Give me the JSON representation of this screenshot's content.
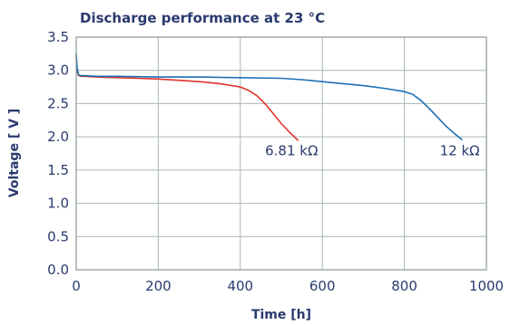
{
  "chart_data": {
    "type": "line",
    "title": "Discharge performance at 23 °C",
    "xlabel": "Time [h]",
    "ylabel": "Voltage [ V ]",
    "xlim": [
      0,
      1000
    ],
    "ylim": [
      0.0,
      3.5
    ],
    "xticks": [
      0,
      200,
      400,
      600,
      800,
      1000
    ],
    "yticks": [
      0.0,
      0.5,
      1.0,
      1.5,
      2.0,
      2.5,
      3.0,
      3.5
    ],
    "ytick_labels": [
      "0.0",
      "0.5",
      "1.0",
      "1.5",
      "2.0",
      "2.5",
      "3.0",
      "3.5"
    ],
    "grid": true,
    "series": [
      {
        "name": "6.81 kΩ",
        "color": "#e0342c",
        "x": [
          0,
          2,
          5,
          10,
          20,
          50,
          100,
          150,
          200,
          250,
          300,
          350,
          400,
          420,
          440,
          460,
          480,
          500,
          520,
          540
        ],
        "y": [
          3.2,
          3.0,
          2.93,
          2.91,
          2.91,
          2.9,
          2.89,
          2.88,
          2.87,
          2.85,
          2.83,
          2.8,
          2.75,
          2.7,
          2.62,
          2.5,
          2.35,
          2.2,
          2.07,
          1.95
        ]
      },
      {
        "name": "12 kΩ",
        "color": "#1c6fb5",
        "x": [
          0,
          2,
          5,
          10,
          20,
          50,
          100,
          200,
          300,
          400,
          500,
          550,
          600,
          650,
          700,
          750,
          800,
          820,
          840,
          860,
          880,
          900,
          920,
          940
        ],
        "y": [
          3.25,
          3.05,
          2.94,
          2.92,
          2.92,
          2.91,
          2.91,
          2.9,
          2.9,
          2.89,
          2.88,
          2.86,
          2.83,
          2.8,
          2.77,
          2.73,
          2.68,
          2.64,
          2.55,
          2.43,
          2.3,
          2.17,
          2.06,
          1.96
        ]
      }
    ],
    "annotations": [
      {
        "text": "6.81 kΩ",
        "x": 525,
        "y": 1.72
      },
      {
        "text": "12 kΩ",
        "x": 935,
        "y": 1.72
      }
    ]
  }
}
